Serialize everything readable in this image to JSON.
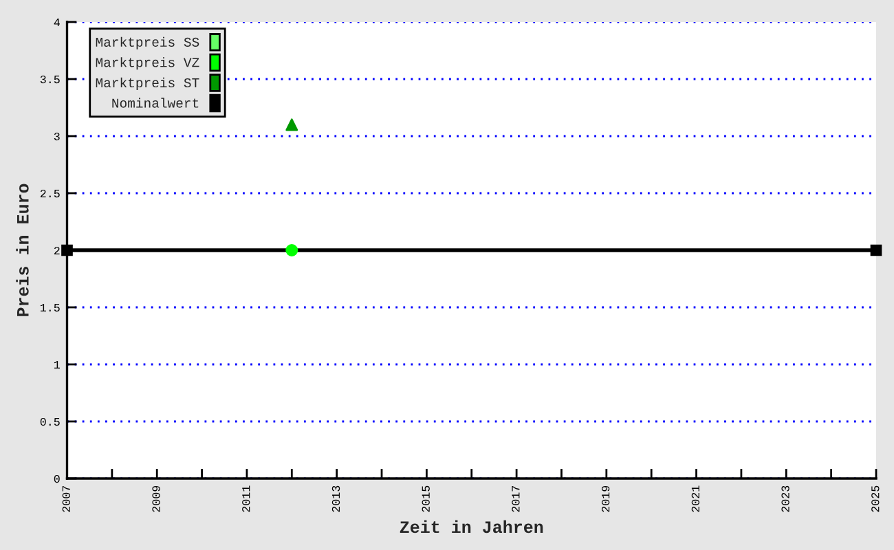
{
  "chart_data": {
    "type": "scatter",
    "xlabel": "Zeit in Jahren",
    "ylabel": "Preis in Euro",
    "xlim": [
      2007,
      2025
    ],
    "xticks": [
      2007,
      {
        "value": 2008,
        "label": null
      },
      2009,
      {
        "value": 2010,
        "label": null
      },
      2011,
      {
        "value": 2012,
        "label": null
      },
      2013,
      {
        "value": 2014,
        "label": null
      },
      2015,
      {
        "value": 2016,
        "label": null
      },
      2017,
      {
        "value": 2018,
        "label": null
      },
      2019,
      {
        "value": 2020,
        "label": null
      },
      2021,
      {
        "value": 2022,
        "label": null
      },
      2023,
      {
        "value": 2024,
        "label": null
      },
      2025
    ],
    "ylim": [
      0,
      4
    ],
    "yticks": [
      0,
      0.5,
      1,
      1.5,
      2,
      2.5,
      3,
      3.5,
      4
    ],
    "grid": "y",
    "legend": "top left",
    "series": [
      {
        "name": "Marktpreis SS",
        "color": "#66ff66"
      },
      {
        "name": "Marktpreis VZ",
        "color": "#00ff00",
        "marker": "circle",
        "x": [
          2012
        ],
        "values": [
          2.0
        ]
      },
      {
        "name": "Marktpreis ST",
        "color": "#009900",
        "marker": "triangle",
        "x": [
          2012
        ],
        "values": [
          3.1
        ]
      },
      {
        "name": "Nominalwert",
        "type": "line",
        "color": "#000000",
        "marker": "square",
        "line_style": "solid",
        "x": [
          2007,
          2025
        ],
        "values": [
          2,
          2
        ]
      }
    ]
  }
}
